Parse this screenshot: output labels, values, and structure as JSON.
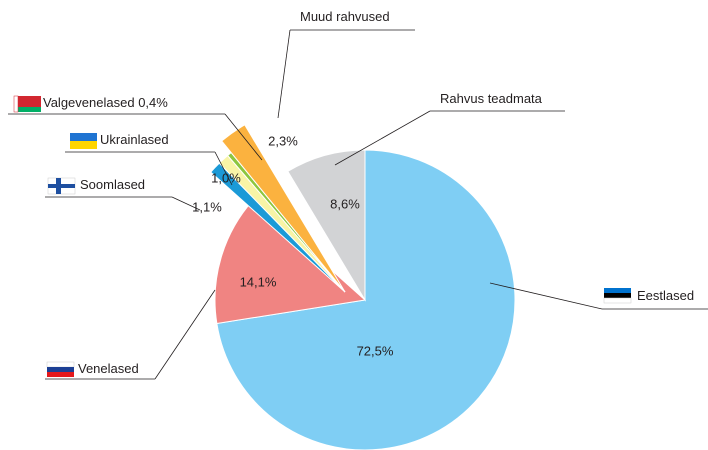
{
  "chart_data": {
    "type": "pie",
    "categories": [
      "Eestlased",
      "Venelased",
      "Soomlased",
      "Ukrainlased",
      "Valgevenelased",
      "Muud rahvused",
      "Rahvus teadmata"
    ],
    "values": [
      72.5,
      14.1,
      1.1,
      1.0,
      0.4,
      2.3,
      8.6
    ],
    "value_labels": [
      "72,5%",
      "14,1%",
      "1,1%",
      "1,0%",
      "0,4%",
      "2,3%",
      "8,6%"
    ],
    "colors": [
      "#7fcef4",
      "#f08482",
      "#1b9ad7",
      "#f8f4a6",
      "#8dc63f",
      "#fbb23f",
      "#d2d3d5"
    ]
  }
}
